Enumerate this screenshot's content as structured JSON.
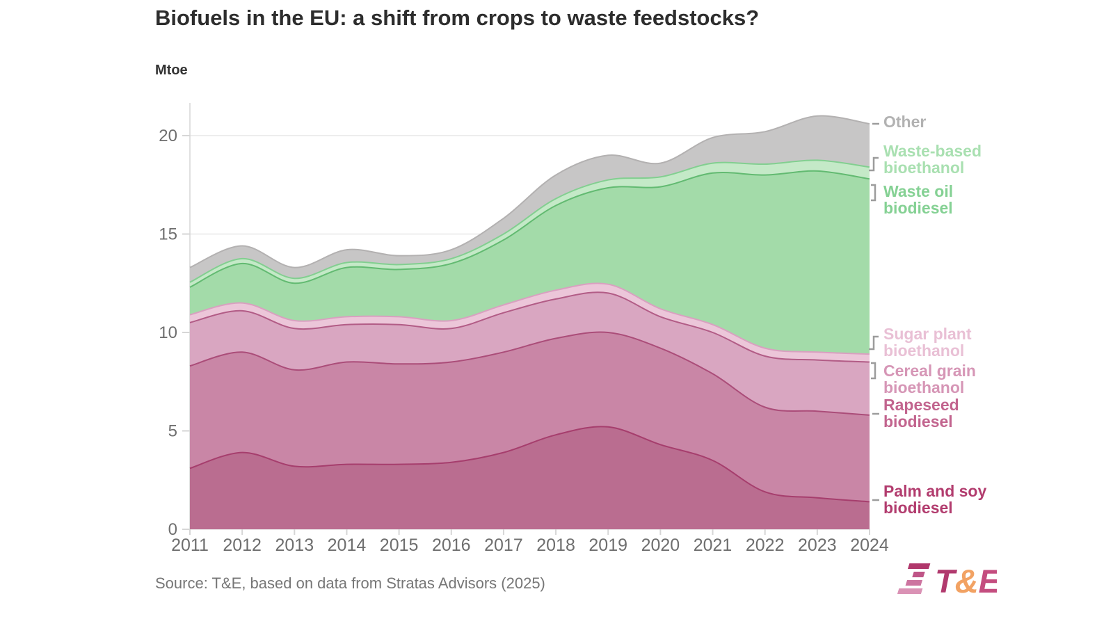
{
  "header": {
    "title": "Biofuels in the EU: a shift from crops to waste feedstocks?",
    "unit_label": "Mtoe"
  },
  "footer": {
    "source": "Source: T&E, based on data from Stratas Advisors (2025)",
    "logo": {
      "t": "T",
      "amp": "&",
      "e": "E"
    }
  },
  "colors": {
    "title_text": "#2d2d2d",
    "axis_text": "#6e6e6e",
    "grid_line": "#e7e7e7",
    "axis_line": "#d6d6d6",
    "legend_tick": "#9c9c9c",
    "source_text": "#767676",
    "logo_t": "#b13a6e",
    "logo_amp": "#f2a263",
    "logo_e": "#c44d7f",
    "logo_stripes": [
      "#b0376b",
      "#bf5587",
      "#cd74a0",
      "#da92b5"
    ]
  },
  "chart_data": {
    "type": "area",
    "stacked": true,
    "title": "Biofuels in the EU: a shift from crops to waste feedstocks?",
    "ylabel": "Mtoe",
    "xlabel": "",
    "x": [
      2011,
      2012,
      2013,
      2014,
      2015,
      2016,
      2017,
      2018,
      2019,
      2020,
      2021,
      2022,
      2023,
      2024
    ],
    "yticks": [
      0,
      5,
      10,
      15,
      20
    ],
    "ylim": [
      0,
      21.6
    ],
    "grid": "horizontal",
    "legend_position": "right",
    "series": [
      {
        "name": "Palm and soy biodiesel",
        "fill": "#ba6d90",
        "stroke": "#a63e6d",
        "values": [
          3.1,
          3.9,
          3.2,
          3.3,
          3.3,
          3.4,
          3.9,
          4.8,
          5.2,
          4.3,
          3.5,
          1.9,
          1.6,
          1.4
        ]
      },
      {
        "name": "Rapeseed biodiesel",
        "fill": "#c986a6",
        "stroke": "#ab4d79",
        "values": [
          5.2,
          5.1,
          4.9,
          5.2,
          5.1,
          5.1,
          5.1,
          4.9,
          4.8,
          4.9,
          4.4,
          4.3,
          4.4,
          4.4
        ]
      },
      {
        "name": "Cereal grain bioethanol",
        "fill": "#d9a6c1",
        "stroke": "#b25c86",
        "values": [
          2.2,
          2.1,
          2.1,
          1.9,
          2.0,
          1.7,
          2.0,
          2.0,
          2.0,
          1.6,
          2.1,
          2.6,
          2.6,
          2.7
        ]
      },
      {
        "name": "Sugar plant bioethanol",
        "fill": "#ecc6d9",
        "stroke": "#d9a0c0",
        "values": [
          0.4,
          0.4,
          0.4,
          0.4,
          0.4,
          0.4,
          0.4,
          0.45,
          0.45,
          0.4,
          0.4,
          0.4,
          0.4,
          0.4
        ]
      },
      {
        "name": "Waste oil biodiesel",
        "fill": "#a3dba9",
        "stroke": "#62ba71",
        "values": [
          1.4,
          2.0,
          1.9,
          2.5,
          2.4,
          2.9,
          3.3,
          4.3,
          4.9,
          6.2,
          7.7,
          8.8,
          9.2,
          8.9
        ]
      },
      {
        "name": "Waste-based bioethanol",
        "fill": "#c4e9c7",
        "stroke": "#82cf90",
        "values": [
          0.25,
          0.25,
          0.25,
          0.25,
          0.25,
          0.25,
          0.3,
          0.35,
          0.4,
          0.5,
          0.5,
          0.55,
          0.55,
          0.6
        ]
      },
      {
        "name": "Other",
        "fill": "#c7c6c6",
        "stroke": "#b3b1b1",
        "values": [
          0.75,
          0.65,
          0.55,
          0.65,
          0.45,
          0.45,
          0.8,
          1.2,
          1.25,
          0.7,
          1.3,
          1.65,
          2.25,
          2.2
        ]
      }
    ],
    "totals": [
      13.3,
      14.4,
      13.3,
      14.2,
      13.9,
      14.2,
      15.8,
      18.0,
      19.0,
      18.6,
      19.9,
      20.2,
      21.0,
      20.6
    ]
  },
  "legend": {
    "items": [
      {
        "lines": [
          "Other"
        ],
        "text_color": "#b2b2b2",
        "tick": "dash"
      },
      {
        "lines": [
          "Waste-based",
          "bioethanol"
        ],
        "text_color": "#a9e0b1",
        "tick": "bracket-s"
      },
      {
        "lines": [
          "Waste oil",
          "biodiesel"
        ],
        "text_color": "#85d194",
        "tick": "bracket-sq"
      },
      {
        "lines": [
          "Sugar plant",
          "bioethanol"
        ],
        "text_color": "#e9c0d5",
        "tick": "bracket-s"
      },
      {
        "lines": [
          "Cereal grain",
          "bioethanol"
        ],
        "text_color": "#d696b6",
        "tick": "bracket-sq"
      },
      {
        "lines": [
          "Rapeseed",
          "biodiesel"
        ],
        "text_color": "#c2648e",
        "tick": "dash"
      },
      {
        "lines": [
          "Palm and soy",
          "biodiesel"
        ],
        "text_color": "#b23c6e",
        "tick": "dash"
      }
    ]
  }
}
